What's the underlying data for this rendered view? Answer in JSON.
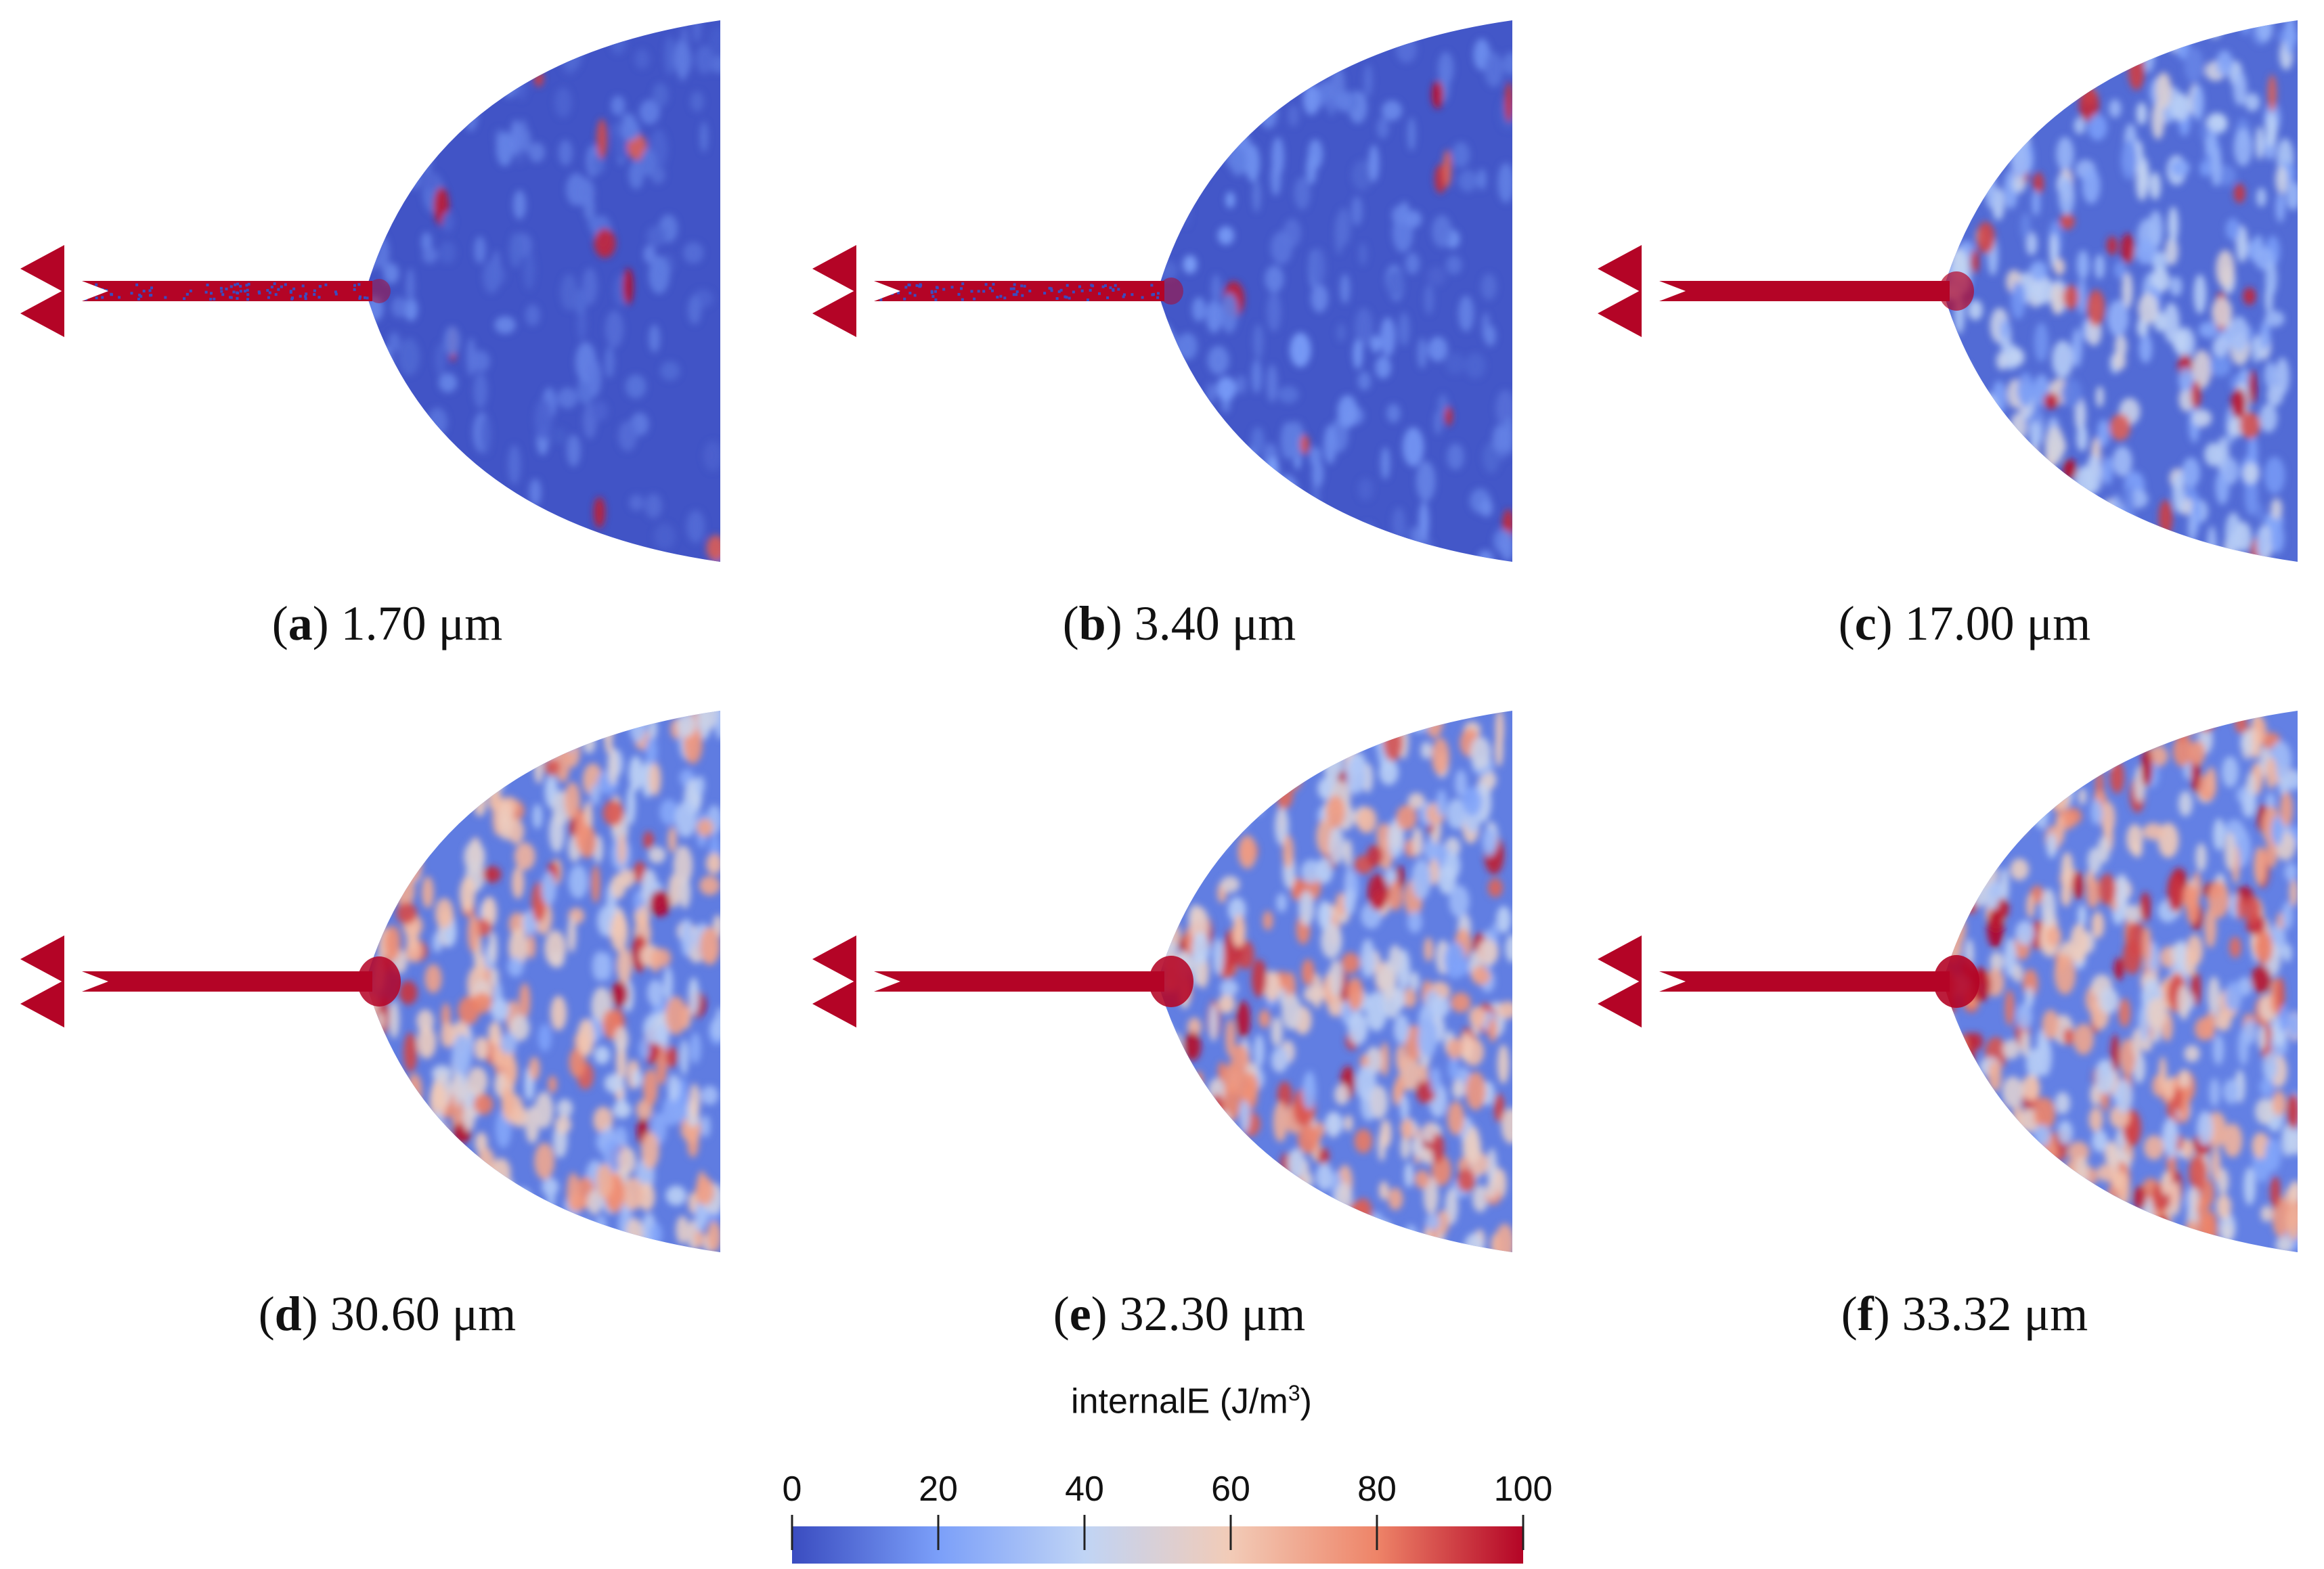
{
  "panels": [
    {
      "id": "a",
      "letter": "a",
      "value": "1.70 μm",
      "level": 0.08
    },
    {
      "id": "b",
      "letter": "b",
      "value": "3.40 μm",
      "level": 0.11
    },
    {
      "id": "c",
      "letter": "c",
      "value": "17.00 μm",
      "level": 0.3
    },
    {
      "id": "d",
      "letter": "d",
      "value": "30.60 μm",
      "level": 0.46
    },
    {
      "id": "e",
      "letter": "e",
      "value": "32.30 μm",
      "level": 0.48
    },
    {
      "id": "f",
      "letter": "f",
      "value": "33.32 μm",
      "level": 0.5
    }
  ],
  "colorbar": {
    "title": "internalE (J/m",
    "title_sup": "3",
    "title_close": ")",
    "ticks": [
      "0",
      "20",
      "40",
      "60",
      "80",
      "100"
    ],
    "colors": [
      "#3a4cc0",
      "#7b9ff9",
      "#c0d4f5",
      "#f2cbb7",
      "#ee8468",
      "#b40426"
    ]
  }
}
